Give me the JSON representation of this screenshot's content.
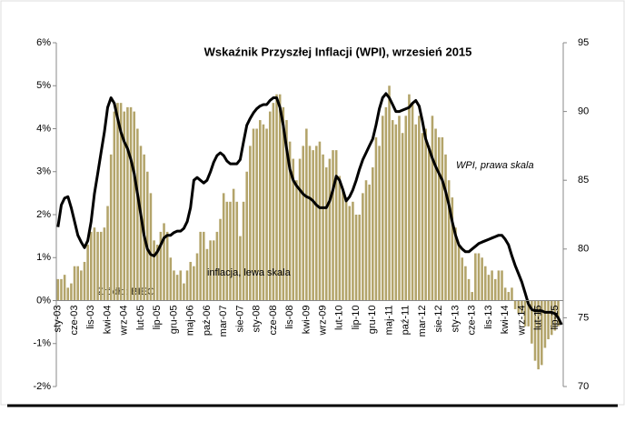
{
  "chart_data": {
    "type": "bar-line",
    "title": "Wskaźnik Przyszłej Inflacji (WPI), wrzesień 2015",
    "source": "Źródło: BIEC",
    "categories": [
      "sty-03",
      null,
      null,
      null,
      null,
      "cze-03",
      null,
      null,
      null,
      null,
      "lis-03",
      null,
      null,
      null,
      null,
      "kwi-04",
      null,
      null,
      null,
      null,
      "wrz-04",
      null,
      null,
      null,
      null,
      "lut-05",
      null,
      null,
      null,
      null,
      "lip-05",
      null,
      null,
      null,
      null,
      "gru-05",
      null,
      null,
      null,
      null,
      "maj-06",
      null,
      null,
      null,
      null,
      "paź-06",
      null,
      null,
      null,
      null,
      "mar-07",
      null,
      null,
      null,
      null,
      "sie-07",
      null,
      null,
      null,
      null,
      "sty-08",
      null,
      null,
      null,
      null,
      "cze-08",
      null,
      null,
      null,
      null,
      "lis-08",
      null,
      null,
      null,
      null,
      "kwi-09",
      null,
      null,
      null,
      null,
      "wrz-09",
      null,
      null,
      null,
      null,
      "lut-10",
      null,
      null,
      null,
      null,
      "lip-10",
      null,
      null,
      null,
      null,
      "gru-10",
      null,
      null,
      null,
      null,
      "maj-11",
      null,
      null,
      null,
      null,
      "paź-11",
      null,
      null,
      null,
      null,
      "mar-12",
      null,
      null,
      null,
      null,
      "sie-12",
      null,
      null,
      null,
      null,
      "sty-13",
      null,
      null,
      null,
      null,
      "cze-13",
      null,
      null,
      null,
      null,
      "lis-13",
      null,
      null,
      null,
      null,
      "kwi-14",
      null,
      null,
      null,
      null,
      "wrz-14",
      null,
      null,
      null,
      null,
      "lut-15",
      null,
      null,
      null,
      null,
      "lip-15",
      null,
      null
    ],
    "series": [
      {
        "name": "inflacja, lewa skala",
        "kind": "bar",
        "axis": "y",
        "color": "#b3a46a",
        "values": [
          0.5,
          0.5,
          0.6,
          0.3,
          0.4,
          0.8,
          0.8,
          0.7,
          0.9,
          1.3,
          1.6,
          1.7,
          1.6,
          1.6,
          1.7,
          2.2,
          3.4,
          4.4,
          4.6,
          4.6,
          4.4,
          4.5,
          4.5,
          4.4,
          4.0,
          3.6,
          3.4,
          3.0,
          2.5,
          1.4,
          1.3,
          1.6,
          1.8,
          1.6,
          1.0,
          0.7,
          0.6,
          0.7,
          0.4,
          0.7,
          0.9,
          0.8,
          1.1,
          1.6,
          1.6,
          1.2,
          1.4,
          1.4,
          1.6,
          1.9,
          2.5,
          2.3,
          2.3,
          2.6,
          2.3,
          1.5,
          2.3,
          3.0,
          3.6,
          4.0,
          4.0,
          4.2,
          4.1,
          4.0,
          4.4,
          4.6,
          4.8,
          4.8,
          4.5,
          4.2,
          3.7,
          3.3,
          2.8,
          3.3,
          3.6,
          4.0,
          3.6,
          3.5,
          3.6,
          3.7,
          3.4,
          3.1,
          3.3,
          3.5,
          3.5,
          2.9,
          2.6,
          2.4,
          2.2,
          2.3,
          2.0,
          2.0,
          2.5,
          2.8,
          2.7,
          3.1,
          3.8,
          3.6,
          4.3,
          4.5,
          5.0,
          4.2,
          4.1,
          4.3,
          3.9,
          4.3,
          4.8,
          4.6,
          4.1,
          4.3,
          3.9,
          4.0,
          3.6,
          4.3,
          4.0,
          3.8,
          3.8,
          3.4,
          2.8,
          2.4,
          1.7,
          1.3,
          1.0,
          0.8,
          0.5,
          0.2,
          1.1,
          1.1,
          1.0,
          0.8,
          0.6,
          0.7,
          0.5,
          0.7,
          0.7,
          0.3,
          0.2,
          0.3,
          -0.2,
          -0.3,
          -0.3,
          -0.6,
          -0.6,
          -1.0,
          -1.4,
          -1.6,
          -1.5,
          -1.1,
          -0.9,
          -0.8,
          -0.7,
          -0.6,
          null
        ]
      },
      {
        "name": "WPI, prawa skala",
        "kind": "line",
        "axis": "y2",
        "color": "#000000",
        "values": [
          81.6,
          83.2,
          83.7,
          83.8,
          83.0,
          82.0,
          81.0,
          80.5,
          80.1,
          80.6,
          82.0,
          84.0,
          85.5,
          87.0,
          88.5,
          90.3,
          91.0,
          90.6,
          89.5,
          88.5,
          87.8,
          87.3,
          86.5,
          85.5,
          84.0,
          82.5,
          81.0,
          80.0,
          79.6,
          79.5,
          79.8,
          80.3,
          80.8,
          81.0,
          81.0,
          81.2,
          81.3,
          81.3,
          81.5,
          82.0,
          83.0,
          85.0,
          85.2,
          85.0,
          84.8,
          85.0,
          85.6,
          86.3,
          86.8,
          87.0,
          86.8,
          86.4,
          86.2,
          86.2,
          86.2,
          86.5,
          87.8,
          89.0,
          89.5,
          89.9,
          90.2,
          90.4,
          90.5,
          90.5,
          90.8,
          91.0,
          91.0,
          90.3,
          89.0,
          87.3,
          85.8,
          85.0,
          84.6,
          84.3,
          84.0,
          83.8,
          83.7,
          83.5,
          83.2,
          83.0,
          83.0,
          83.0,
          83.5,
          84.3,
          85.3,
          85.0,
          84.3,
          83.5,
          83.8,
          84.3,
          85.0,
          85.8,
          86.5,
          87.0,
          87.5,
          88.0,
          89.0,
          90.2,
          91.0,
          91.3,
          91.0,
          90.5,
          90.0,
          90.0,
          90.1,
          90.2,
          90.3,
          90.6,
          90.8,
          90.4,
          89.3,
          88.0,
          87.3,
          86.6,
          86.0,
          85.5,
          85.0,
          84.2,
          83.2,
          82.0,
          81.0,
          80.3,
          80.0,
          79.8,
          79.8,
          80.0,
          80.2,
          80.4,
          80.5,
          80.6,
          80.7,
          80.8,
          80.9,
          81.0,
          81.0,
          80.7,
          80.3,
          79.5,
          78.8,
          78.2,
          77.6,
          76.8,
          76.0,
          75.6,
          75.5,
          75.5,
          75.5,
          75.4,
          75.4,
          75.4,
          75.3,
          75.0,
          74.5
        ]
      }
    ],
    "ylim": [
      -2,
      6
    ],
    "yticks": [
      {
        "value": -2,
        "label": "-2%"
      },
      {
        "value": -1,
        "label": "-1%"
      },
      {
        "value": 0,
        "label": "0%"
      },
      {
        "value": 1,
        "label": "1%"
      },
      {
        "value": 2,
        "label": "2%"
      },
      {
        "value": 3,
        "label": "3%"
      },
      {
        "value": 4,
        "label": "4%"
      },
      {
        "value": 5,
        "label": "5%"
      },
      {
        "value": 6,
        "label": "6%"
      }
    ],
    "y2lim": [
      70,
      95
    ],
    "y2ticks": [
      70,
      75,
      80,
      85,
      90,
      95
    ]
  }
}
